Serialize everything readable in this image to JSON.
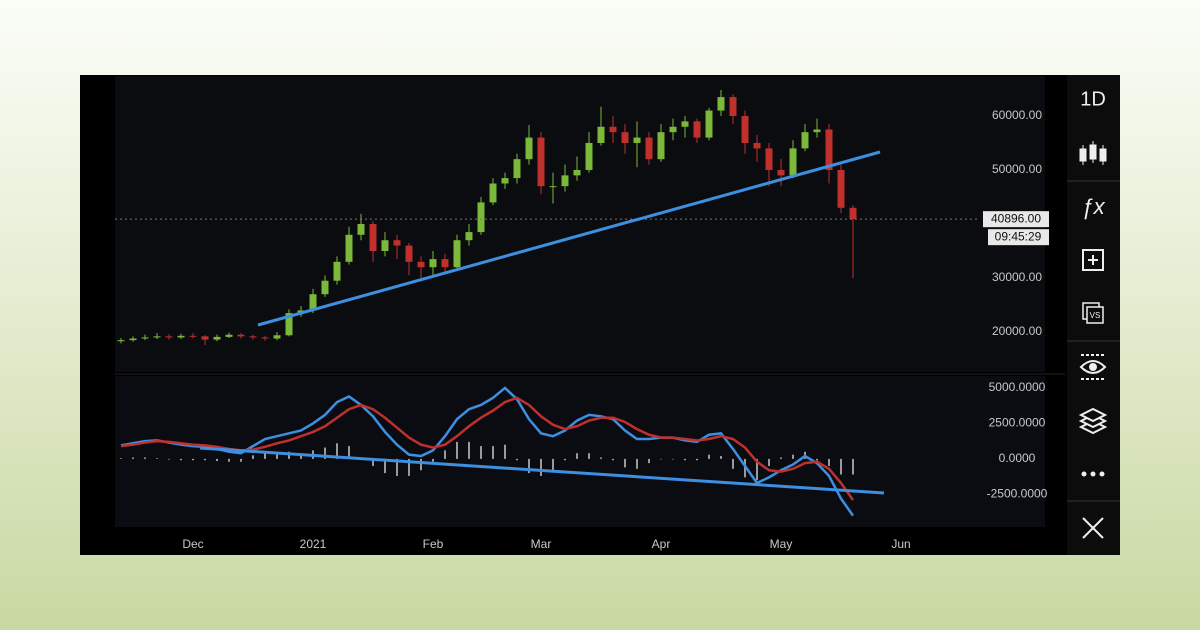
{
  "toolbar": {
    "interval": "1D"
  },
  "chart_data": [
    {
      "type": "candlestick",
      "categories": [
        null,
        null,
        null,
        null,
        null,
        null,
        "Dec",
        null,
        null,
        null,
        null,
        null,
        null,
        null,
        null,
        null,
        "2021",
        null,
        null,
        null,
        null,
        null,
        null,
        null,
        null,
        null,
        "Feb",
        null,
        null,
        null,
        null,
        null,
        null,
        null,
        null,
        "Mar",
        null,
        null,
        null,
        null,
        null,
        null,
        null,
        null,
        null,
        "Apr",
        null,
        null,
        null,
        null,
        null,
        null,
        null,
        null,
        null,
        "May",
        null,
        null,
        null,
        null,
        null,
        null,
        null,
        null,
        null,
        "Jun",
        null,
        null,
        null,
        null,
        null,
        null
      ],
      "open": [
        18300,
        18500,
        18800,
        19000,
        19200,
        19000,
        19300,
        19200,
        18600,
        19100,
        19500,
        19200,
        19000,
        18800,
        19400,
        23500,
        24000,
        27000,
        29500,
        33000,
        38000,
        40000,
        35000,
        37000,
        36000,
        33000,
        32000,
        33500,
        32000,
        37000,
        38500,
        44000,
        47500,
        48500,
        52000,
        56000,
        47000,
        47000,
        49000,
        50000,
        55000,
        58000,
        57000,
        55000,
        56000,
        52000,
        57000,
        58000,
        59000,
        56000,
        61000,
        63500,
        60000,
        55000,
        54000,
        50000,
        49000,
        54000,
        57000,
        57500,
        50000,
        43000,
        null,
        null,
        null,
        null,
        null,
        null,
        null,
        null,
        null,
        null
      ],
      "high": [
        18900,
        19200,
        19500,
        19800,
        19600,
        19700,
        19800,
        19400,
        19500,
        19900,
        19800,
        19500,
        19300,
        20000,
        24200,
        24800,
        28000,
        30500,
        34000,
        39500,
        41900,
        40500,
        38500,
        38000,
        36500,
        34000,
        35000,
        34500,
        38000,
        40000,
        45000,
        48500,
        49500,
        53000,
        58300,
        57000,
        49500,
        51000,
        52500,
        57000,
        61700,
        60000,
        58500,
        59000,
        57000,
        58500,
        59500,
        60000,
        59500,
        61500,
        64800,
        64000,
        61000,
        56500,
        55000,
        52000,
        55500,
        58500,
        59500,
        58500,
        51000,
        43500,
        null,
        null,
        null,
        null,
        null,
        null,
        null,
        null,
        null,
        null
      ],
      "low": [
        17900,
        18200,
        18500,
        18700,
        18600,
        18700,
        18800,
        17600,
        18300,
        18900,
        18800,
        18600,
        18400,
        18500,
        19200,
        22800,
        23500,
        26500,
        28800,
        32500,
        37000,
        33000,
        34000,
        33500,
        30500,
        30000,
        30500,
        31000,
        31500,
        36000,
        38000,
        43500,
        46500,
        47500,
        51000,
        45500,
        43800,
        46000,
        48000,
        49500,
        54500,
        55000,
        53000,
        50500,
        51000,
        51500,
        55500,
        56000,
        55000,
        55500,
        60000,
        58500,
        53000,
        51500,
        47000,
        47000,
        48500,
        53500,
        56000,
        47500,
        42000,
        30000,
        null,
        null,
        null,
        null,
        null,
        null,
        null,
        null,
        null,
        null
      ],
      "close": [
        18500,
        18800,
        19000,
        19200,
        19000,
        19300,
        19200,
        18600,
        19100,
        19500,
        19200,
        19000,
        18800,
        19400,
        23500,
        24000,
        27000,
        29500,
        33000,
        38000,
        40000,
        35000,
        37000,
        36000,
        33000,
        32000,
        33500,
        32000,
        37000,
        38500,
        44000,
        47500,
        48500,
        52000,
        56000,
        47000,
        47000,
        49000,
        50000,
        55000,
        58000,
        57000,
        55000,
        56000,
        52000,
        57000,
        58000,
        59000,
        56000,
        61000,
        63500,
        60000,
        55000,
        54000,
        50000,
        49000,
        54000,
        57000,
        57500,
        50000,
        43000,
        40896,
        null,
        null,
        null,
        null,
        null,
        null,
        null,
        null,
        null,
        null
      ],
      "up_color": "#7cb83a",
      "down_color": "#c0302c",
      "ylim": [
        12600,
        67400
      ],
      "yticks": [
        {
          "value": 60000,
          "label": "60000.00"
        },
        {
          "value": 50000,
          "label": "50000.00"
        },
        {
          "value": 30000,
          "label": "30000.00"
        },
        {
          "value": 20000,
          "label": "20000.00"
        }
      ],
      "current_price": {
        "value": 40896,
        "label": "40896.00"
      },
      "countdown": "09:45:29"
    },
    {
      "type": "line",
      "series": [
        {
          "color": "#3d8fe0",
          "values": [
            950,
            1100,
            1250,
            1300,
            1150,
            1000,
            900,
            850,
            700,
            500,
            400,
            900,
            1400,
            1600,
            1800,
            2000,
            2500,
            3100,
            4000,
            4400,
            3800,
            3000,
            1900,
            1000,
            300,
            200,
            600,
            1600,
            2800,
            3500,
            3800,
            4300,
            5000,
            4200,
            2800,
            1800,
            1600,
            2000,
            2700,
            3100,
            3000,
            2800,
            2000,
            1400,
            1400,
            1500,
            1500,
            1300,
            1200,
            1700,
            1800,
            700,
            -500,
            -1700,
            -1300,
            -800,
            -400,
            200,
            -300,
            -1200,
            -2800,
            -4000,
            null,
            null,
            null,
            null,
            null,
            null,
            null,
            null,
            null,
            null
          ]
        },
        {
          "color": "#c0302c",
          "values": [
            900,
            1000,
            1150,
            1250,
            1200,
            1100,
            1000,
            950,
            850,
            700,
            600,
            650,
            850,
            1100,
            1300,
            1600,
            1900,
            2300,
            2900,
            3500,
            3800,
            3500,
            2900,
            2200,
            1500,
            1000,
            800,
            1000,
            1600,
            2300,
            2900,
            3400,
            4000,
            4300,
            3800,
            3000,
            2400,
            2100,
            2300,
            2700,
            2900,
            2900,
            2600,
            2100,
            1700,
            1500,
            1500,
            1400,
            1300,
            1400,
            1600,
            1400,
            800,
            -200,
            -800,
            -900,
            -700,
            -300,
            -200,
            -700,
            -1700,
            -2900,
            null,
            null,
            null,
            null,
            null,
            null,
            null,
            null,
            null,
            null
          ]
        }
      ],
      "histogram": {
        "color": "#9a9a9a",
        "values": [
          50,
          100,
          100,
          50,
          -50,
          -100,
          -100,
          -100,
          -150,
          -200,
          -200,
          250,
          550,
          500,
          500,
          400,
          600,
          800,
          1100,
          900,
          0,
          -500,
          -1000,
          -1200,
          -1200,
          -800,
          -200,
          600,
          1200,
          1200,
          900,
          900,
          1000,
          -100,
          -1000,
          -1200,
          -800,
          -100,
          400,
          400,
          100,
          -100,
          -600,
          -700,
          -300,
          0,
          0,
          -100,
          -100,
          300,
          200,
          -700,
          -1300,
          -1500,
          -500,
          100,
          300,
          500,
          -100,
          -500,
          -1100,
          -1100,
          null,
          null,
          null,
          null,
          null,
          null,
          null,
          null,
          null,
          null
        ]
      },
      "ylim": [
        -4800,
        5700
      ],
      "yticks": [
        {
          "value": 5000,
          "label": "5000.0000"
        },
        {
          "value": 2500,
          "label": "2500.0000"
        },
        {
          "value": 0,
          "label": "0.0000"
        },
        {
          "value": -2500,
          "label": "-2500.0000"
        }
      ]
    }
  ]
}
